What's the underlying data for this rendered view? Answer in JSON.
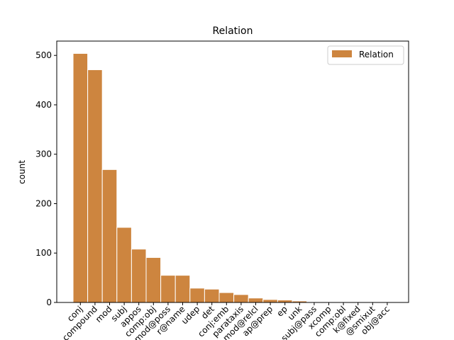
{
  "chart_data": {
    "type": "bar",
    "title": "Relation",
    "y_label": "count",
    "categories": [
      "conj",
      "compound",
      "mod",
      "subj",
      "appos",
      "comp:obj",
      "mod@poss",
      "r@name",
      "udep",
      "det",
      "conj:emb",
      "parataxis",
      "mod@relcl",
      "ap@prep",
      "ep",
      "unk",
      "subj@pass",
      "xcomp",
      "comp:obl",
      "k@fixed",
      "@smixut",
      "obj@acc"
    ],
    "series": [
      {
        "name": "Relation",
        "color": "#cd853f",
        "values": [
          504,
          471,
          269,
          152,
          108,
          91,
          55,
          55,
          29,
          27,
          20,
          16,
          9,
          6,
          5,
          3,
          1,
          1,
          0.5,
          0.5,
          0.3,
          0.3
        ]
      }
    ],
    "ylim": [
      0,
      529
    ],
    "yticks": [
      0,
      100,
      200,
      300,
      400,
      500
    ],
    "legend": "upper right"
  }
}
